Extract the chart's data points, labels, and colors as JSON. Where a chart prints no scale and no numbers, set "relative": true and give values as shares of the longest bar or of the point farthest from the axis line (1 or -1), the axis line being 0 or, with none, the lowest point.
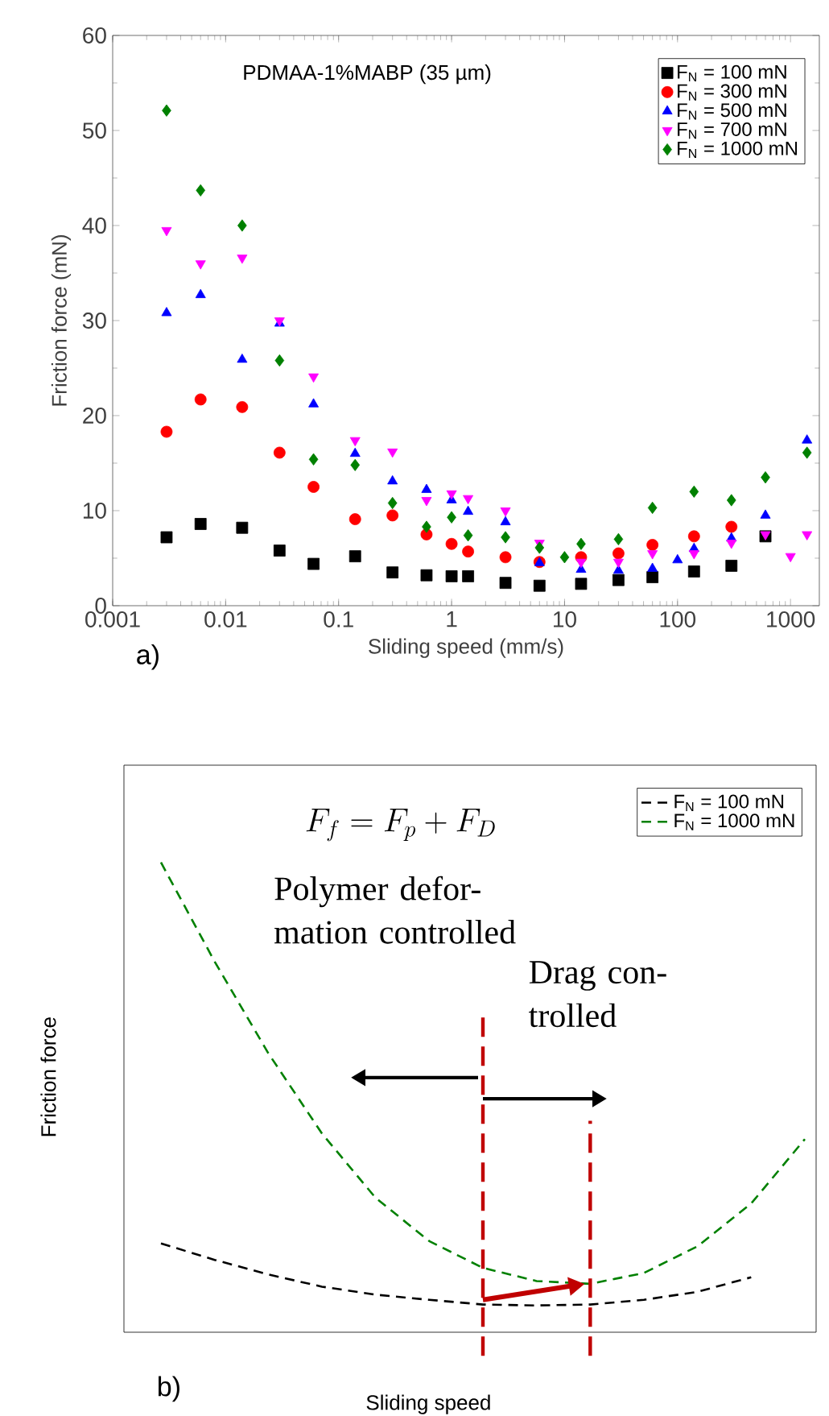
{
  "chart_data": [
    {
      "type": "scatter",
      "title": "PDMAA-1%MABP (35 µm)",
      "xlabel": "Sliding speed (mm/s)",
      "ylabel": "Friction force (mN)",
      "log": "x",
      "xlim": [
        0.001,
        1800
      ],
      "xticks": [
        0.001,
        0.01,
        0.1,
        1,
        10,
        100,
        1000
      ],
      "ylim": [
        0,
        60
      ],
      "yticks": [
        0,
        10,
        20,
        30,
        40,
        50,
        60
      ],
      "legend": "top right",
      "annotations": [
        "a)"
      ],
      "series": [
        {
          "name": "F$_{N}$ = 100 mN",
          "color": "#000000",
          "marker": "square",
          "x": [
            0.003,
            0.006,
            0.014,
            0.03,
            0.06,
            0.14,
            0.3,
            0.6,
            1,
            1.4,
            3,
            6,
            14,
            30,
            60,
            140,
            300,
            600
          ],
          "values": [
            7.2,
            8.6,
            8.2,
            5.8,
            4.4,
            5.2,
            3.5,
            3.2,
            3.1,
            3.1,
            2.4,
            2.1,
            2.3,
            2.7,
            3.0,
            3.6,
            4.2,
            7.3
          ]
        },
        {
          "name": "F$_{N}$ = 300 mN",
          "color": "#ff0000",
          "marker": "circle",
          "x": [
            0.003,
            0.006,
            0.014,
            0.03,
            0.06,
            0.14,
            0.3,
            0.6,
            1,
            1.4,
            3,
            6,
            14,
            30,
            60,
            140,
            300
          ],
          "values": [
            18.3,
            21.7,
            20.9,
            16.1,
            12.5,
            9.1,
            9.5,
            7.5,
            6.5,
            5.7,
            5.1,
            4.6,
            5.1,
            5.5,
            6.4,
            7.3,
            8.3
          ]
        },
        {
          "name": "F$_{N}$ = 500 mN",
          "color": "#0000ff",
          "marker": "triangle",
          "x": [
            0.003,
            0.006,
            0.014,
            0.03,
            0.06,
            0.14,
            0.3,
            0.6,
            1,
            1.4,
            3,
            6,
            14,
            30,
            60,
            100,
            140,
            300,
            600,
            1400
          ],
          "values": [
            30.8,
            32.7,
            25.9,
            29.7,
            21.2,
            16.0,
            13.1,
            12.2,
            11.1,
            9.9,
            8.8,
            4.5,
            3.8,
            3.7,
            3.9,
            4.8,
            6.0,
            7.1,
            9.5,
            17.4
          ]
        },
        {
          "name": "F$_{N}$ = 700 mN",
          "color": "#ff00ff",
          "marker": "triangle-down",
          "x": [
            0.003,
            0.006,
            0.014,
            0.03,
            0.06,
            0.14,
            0.3,
            0.6,
            1,
            1.4,
            3,
            6,
            14,
            30,
            60,
            140,
            300,
            600,
            1000,
            1400
          ],
          "values": [
            39.5,
            36.0,
            36.6,
            30.0,
            24.1,
            17.4,
            16.2,
            11.1,
            11.8,
            11.3,
            10.0,
            6.6,
            4.6,
            4.6,
            5.5,
            5.5,
            6.6,
            7.5,
            5.2,
            7.5
          ]
        },
        {
          "name": "F$_{N}$ = 1000 mN",
          "color": "#008000",
          "marker": "diamond",
          "x": [
            0.003,
            0.006,
            0.014,
            0.03,
            0.06,
            0.14,
            0.3,
            0.6,
            1,
            1.4,
            3,
            6,
            10,
            14,
            30,
            60,
            140,
            300,
            600,
            1400
          ],
          "values": [
            52.1,
            43.7,
            40.0,
            25.8,
            15.4,
            14.8,
            10.8,
            8.3,
            9.3,
            7.4,
            7.2,
            6.1,
            5.1,
            6.5,
            7.0,
            10.3,
            12.0,
            11.1,
            13.5,
            16.1
          ]
        }
      ]
    },
    {
      "type": "line",
      "relative": true,
      "xlabel": "Sliding speed",
      "ylabel": "Friction force",
      "legend": "top right",
      "line_style": "dashed",
      "categories": [
        null,
        null,
        null,
        null,
        null,
        null,
        null,
        null,
        null,
        null,
        null,
        null,
        null
      ],
      "annotations": [
        "F_f = F_p + F_D",
        "Polymer defor-mation controlled",
        "Drag con-trolled",
        "b)"
      ],
      "series": [
        {
          "name": "F$_{N}$ = 100 mN",
          "color": "#000000",
          "values": [
            0.189,
            0.154,
            0.123,
            0.097,
            0.08,
            0.069,
            0.059,
            0.057,
            0.059,
            0.069,
            0.086,
            0.117,
            null
          ]
        },
        {
          "name": "F$_{N}$ = 1000 mN",
          "color": "#008000",
          "values": [
            1,
            0.789,
            0.594,
            0.423,
            0.286,
            0.194,
            0.137,
            0.109,
            0.103,
            0.126,
            0.183,
            0.274,
            0.411
          ]
        }
      ]
    }
  ]
}
